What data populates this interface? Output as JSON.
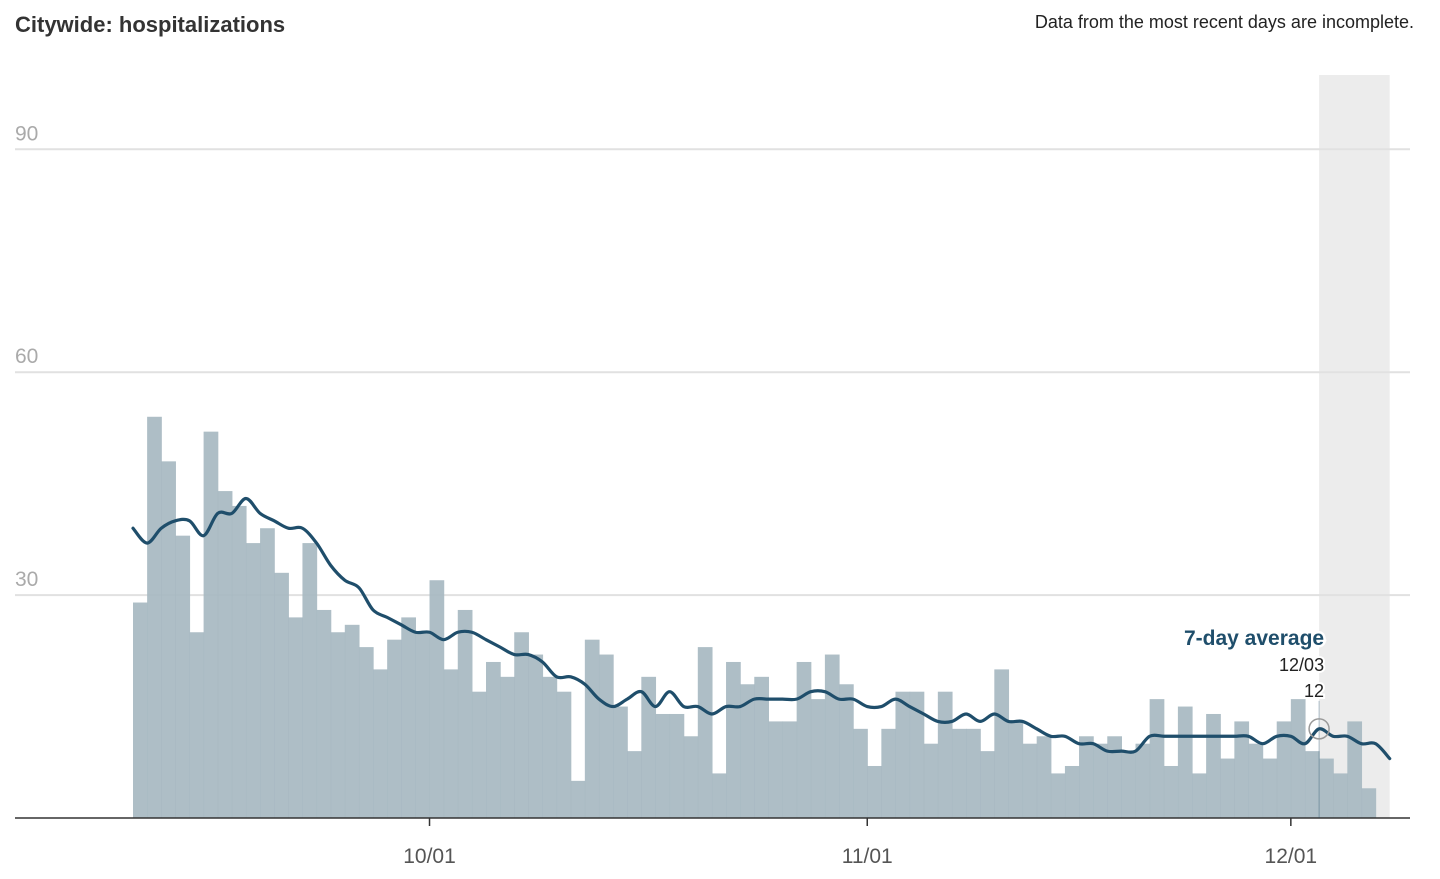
{
  "header": {
    "title": "Citywide: hospitalizations",
    "note": "Data from the most recent days are incomplete."
  },
  "colors": {
    "bar": "#a7b8c1",
    "line": "#1f4e6b",
    "incomplete_band": "#ececec",
    "grid": "#e1e1e1",
    "axis": "#333333"
  },
  "chart_data": {
    "type": "bar",
    "title": "Citywide: hospitalizations",
    "xlabel": "",
    "ylabel": "",
    "ylim": [
      0,
      100
    ],
    "yticks": [
      30,
      60,
      90
    ],
    "xticks": [
      {
        "date": "2021-10-01",
        "label": "10/01"
      },
      {
        "date": "2021-11-01",
        "label": "11/01"
      },
      {
        "date": "2021-12-01",
        "label": "12/01"
      }
    ],
    "x_start_date": "2021-09-10",
    "x_end_date": "2021-12-08",
    "incomplete_from_date": "2021-12-03",
    "series": [
      {
        "kind": "bar",
        "x": [
          "2021-09-10",
          "2021-09-11",
          "2021-09-12",
          "2021-09-13",
          "2021-09-14",
          "2021-09-15",
          "2021-09-16",
          "2021-09-17",
          "2021-09-18",
          "2021-09-19",
          "2021-09-20",
          "2021-09-21",
          "2021-09-22",
          "2021-09-23",
          "2021-09-24",
          "2021-09-25",
          "2021-09-26",
          "2021-09-27",
          "2021-09-28",
          "2021-09-29",
          "2021-09-30",
          "2021-10-01",
          "2021-10-02",
          "2021-10-03",
          "2021-10-04",
          "2021-10-05",
          "2021-10-06",
          "2021-10-07",
          "2021-10-08",
          "2021-10-09",
          "2021-10-10",
          "2021-10-11",
          "2021-10-12",
          "2021-10-13",
          "2021-10-14",
          "2021-10-15",
          "2021-10-16",
          "2021-10-17",
          "2021-10-18",
          "2021-10-19",
          "2021-10-20",
          "2021-10-21",
          "2021-10-22",
          "2021-10-23",
          "2021-10-24",
          "2021-10-25",
          "2021-10-26",
          "2021-10-27",
          "2021-10-28",
          "2021-10-29",
          "2021-10-30",
          "2021-10-31",
          "2021-11-01",
          "2021-11-02",
          "2021-11-03",
          "2021-11-04",
          "2021-11-05",
          "2021-11-06",
          "2021-11-07",
          "2021-11-08",
          "2021-11-09",
          "2021-11-10",
          "2021-11-11",
          "2021-11-12",
          "2021-11-13",
          "2021-11-14",
          "2021-11-15",
          "2021-11-16",
          "2021-11-17",
          "2021-11-18",
          "2021-11-19",
          "2021-11-20",
          "2021-11-21",
          "2021-11-22",
          "2021-11-23",
          "2021-11-24",
          "2021-11-25",
          "2021-11-26",
          "2021-11-27",
          "2021-11-28",
          "2021-11-29",
          "2021-11-30",
          "2021-12-01",
          "2021-12-02",
          "2021-12-03",
          "2021-12-04",
          "2021-12-05",
          "2021-12-06",
          "2021-12-07"
        ],
        "values": [
          29,
          54,
          48,
          38,
          25,
          52,
          44,
          42,
          37,
          39,
          33,
          27,
          37,
          28,
          25,
          26,
          23,
          20,
          24,
          27,
          25,
          32,
          20,
          28,
          17,
          21,
          19,
          25,
          22,
          19,
          17,
          5,
          24,
          22,
          15,
          9,
          19,
          14,
          14,
          11,
          23,
          6,
          21,
          18,
          19,
          13,
          13,
          21,
          16,
          22,
          18,
          12,
          7,
          12,
          17,
          17,
          10,
          17,
          12,
          12,
          9,
          20,
          13,
          10,
          11,
          6,
          7,
          11,
          10,
          11,
          9,
          10,
          16,
          7,
          15,
          6,
          14,
          8,
          13,
          10,
          8,
          13,
          16,
          9,
          8,
          6,
          13,
          4,
          0
        ]
      },
      {
        "name": "7-day average",
        "kind": "line",
        "x": [
          "2021-09-10",
          "2021-09-11",
          "2021-09-12",
          "2021-09-13",
          "2021-09-14",
          "2021-09-15",
          "2021-09-16",
          "2021-09-17",
          "2021-09-18",
          "2021-09-19",
          "2021-09-20",
          "2021-09-21",
          "2021-09-22",
          "2021-09-23",
          "2021-09-24",
          "2021-09-25",
          "2021-09-26",
          "2021-09-27",
          "2021-09-28",
          "2021-09-29",
          "2021-09-30",
          "2021-10-01",
          "2021-10-02",
          "2021-10-03",
          "2021-10-04",
          "2021-10-05",
          "2021-10-06",
          "2021-10-07",
          "2021-10-08",
          "2021-10-09",
          "2021-10-10",
          "2021-10-11",
          "2021-10-12",
          "2021-10-13",
          "2021-10-14",
          "2021-10-15",
          "2021-10-16",
          "2021-10-17",
          "2021-10-18",
          "2021-10-19",
          "2021-10-20",
          "2021-10-21",
          "2021-10-22",
          "2021-10-23",
          "2021-10-24",
          "2021-10-25",
          "2021-10-26",
          "2021-10-27",
          "2021-10-28",
          "2021-10-29",
          "2021-10-30",
          "2021-10-31",
          "2021-11-01",
          "2021-11-02",
          "2021-11-03",
          "2021-11-04",
          "2021-11-05",
          "2021-11-06",
          "2021-11-07",
          "2021-11-08",
          "2021-11-09",
          "2021-11-10",
          "2021-11-11",
          "2021-11-12",
          "2021-11-13",
          "2021-11-14",
          "2021-11-15",
          "2021-11-16",
          "2021-11-17",
          "2021-11-18",
          "2021-11-19",
          "2021-11-20",
          "2021-11-21",
          "2021-11-22",
          "2021-11-23",
          "2021-11-24",
          "2021-11-25",
          "2021-11-26",
          "2021-11-27",
          "2021-11-28",
          "2021-11-29",
          "2021-11-30",
          "2021-12-01",
          "2021-12-02",
          "2021-12-03",
          "2021-12-04",
          "2021-12-05",
          "2021-12-06",
          "2021-12-07",
          "2021-12-08"
        ],
        "values": [
          39,
          37,
          39,
          40,
          40,
          38,
          41,
          41,
          43,
          41,
          40,
          39,
          39,
          37,
          34,
          32,
          31,
          28,
          27,
          26,
          25,
          25,
          24,
          25,
          25,
          24,
          23,
          22,
          22,
          21,
          19,
          19,
          18,
          16,
          15,
          16,
          17,
          15,
          17,
          15,
          15,
          14,
          15,
          15,
          16,
          16,
          16,
          16,
          17,
          17,
          16,
          16,
          15,
          15,
          16,
          15,
          14,
          13,
          13,
          14,
          13,
          14,
          13,
          13,
          12,
          11,
          11,
          10,
          10,
          9,
          9,
          9,
          11,
          11,
          11,
          11,
          11,
          11,
          11,
          11,
          10,
          11,
          11,
          10,
          12,
          11,
          11,
          10,
          10,
          8
        ]
      }
    ],
    "annotation": {
      "title": "7-day average",
      "date": "12/03",
      "value": "12",
      "at_date": "2021-12-03",
      "at_value": 12
    }
  }
}
